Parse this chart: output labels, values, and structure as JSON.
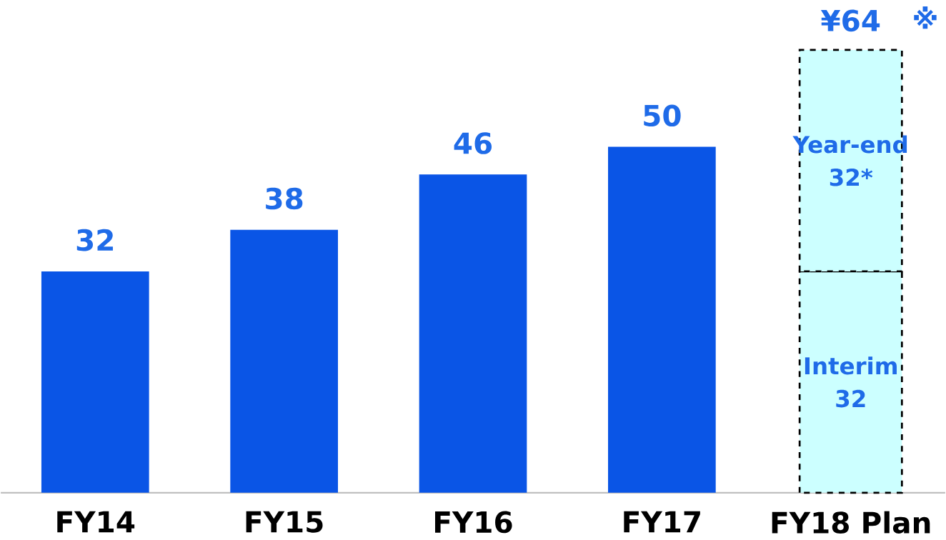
{
  "chart_data": {
    "type": "bar",
    "categories": [
      "FY14",
      "FY15",
      "FY16",
      "FY17",
      "FY18 Plan"
    ],
    "stacked": true,
    "tick_labels": "x",
    "series": [
      {
        "color": "#0a55e6",
        "values": [
          32,
          38,
          46,
          50,
          null
        ],
        "value_labels": [
          "32",
          "38",
          "46",
          "50",
          null
        ]
      },
      {
        "name": "Interim",
        "color": "#ccffff",
        "line_style": "dashed",
        "values": [
          null,
          null,
          null,
          null,
          32
        ],
        "value_labels": [
          null,
          null,
          null,
          null,
          "32"
        ]
      },
      {
        "name": "Year-end",
        "color": "#ccffff",
        "line_style": "dashed",
        "values": [
          null,
          null,
          null,
          null,
          32
        ],
        "value_labels": [
          null,
          null,
          null,
          null,
          "32*"
        ]
      }
    ],
    "totals": [
      null,
      null,
      null,
      null,
      "¥64"
    ],
    "annotations": [
      "※"
    ]
  }
}
